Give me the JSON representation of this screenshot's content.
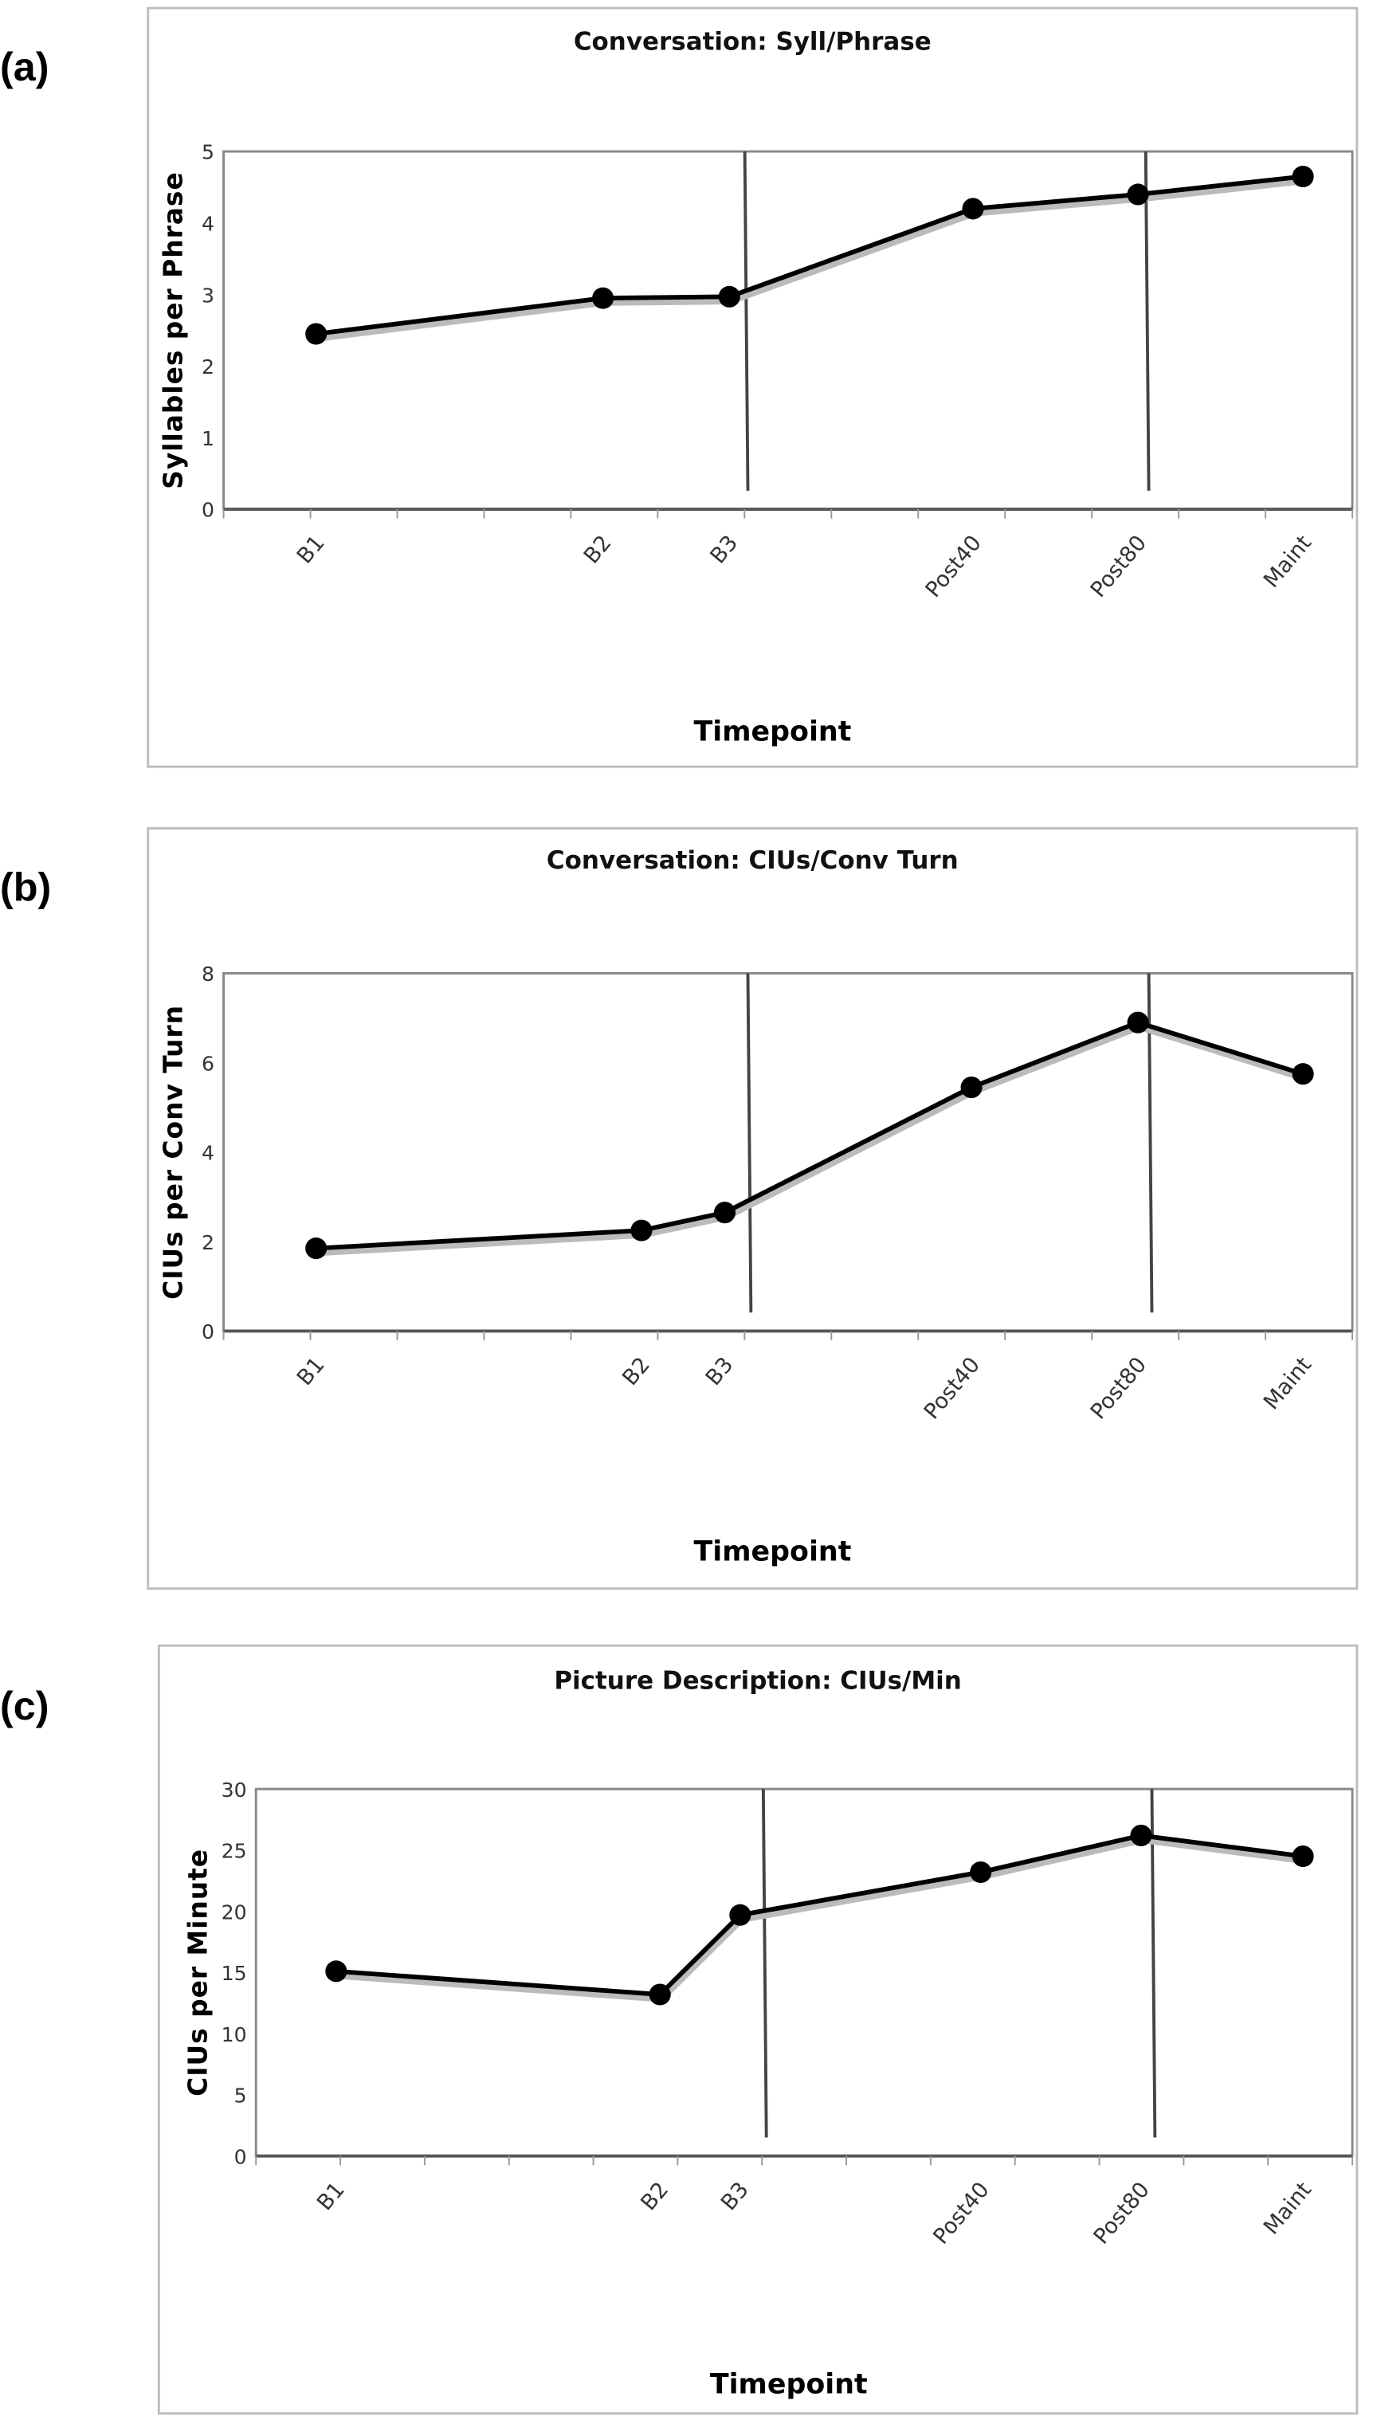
{
  "chart_data": [
    {
      "panel": "(a)",
      "type": "line",
      "title": "Conversation: Syll/Phrase",
      "xlabel": "Timepoint",
      "ylabel": "Syllables per Phrase",
      "categories": [
        "B1",
        "B2",
        "B3",
        "Post40",
        "Post80",
        "Maint"
      ],
      "values": [
        2.45,
        2.95,
        2.97,
        4.2,
        4.4,
        4.65
      ],
      "ylim": [
        0,
        5
      ],
      "yticks": [
        "0",
        "1",
        "2",
        "3",
        "4",
        "5"
      ],
      "phase_markers": [
        "after B3",
        "after Post80"
      ],
      "grid": false
    },
    {
      "panel": "(b)",
      "type": "line",
      "title": "Conversation: CIUs/Conv Turn",
      "xlabel": "Timepoint",
      "ylabel": "CIUs per Conv Turn",
      "categories": [
        "B1",
        "B2",
        "B3",
        "Post40",
        "Post80",
        "Maint"
      ],
      "values": [
        1.85,
        2.25,
        2.65,
        5.45,
        6.9,
        5.75
      ],
      "ylim": [
        0,
        8
      ],
      "yticks": [
        "0",
        "2",
        "4",
        "6",
        "8"
      ],
      "phase_markers": [
        "after B3",
        "after Post80"
      ],
      "grid": false
    },
    {
      "panel": "(c)",
      "type": "line",
      "title": "Picture Description: CIUs/Min",
      "xlabel": "Timepoint",
      "ylabel": "CIUs per Minute",
      "categories": [
        "B1",
        "B2",
        "B3",
        "Post40",
        "Post80",
        "Maint"
      ],
      "values": [
        15.1,
        13.2,
        19.7,
        23.2,
        26.2,
        24.5
      ],
      "ylim": [
        0,
        30
      ],
      "yticks": [
        "0",
        "5",
        "10",
        "15",
        "20",
        "25",
        "30"
      ],
      "phase_markers": [
        "after B3",
        "after Post80"
      ],
      "grid": false
    }
  ]
}
